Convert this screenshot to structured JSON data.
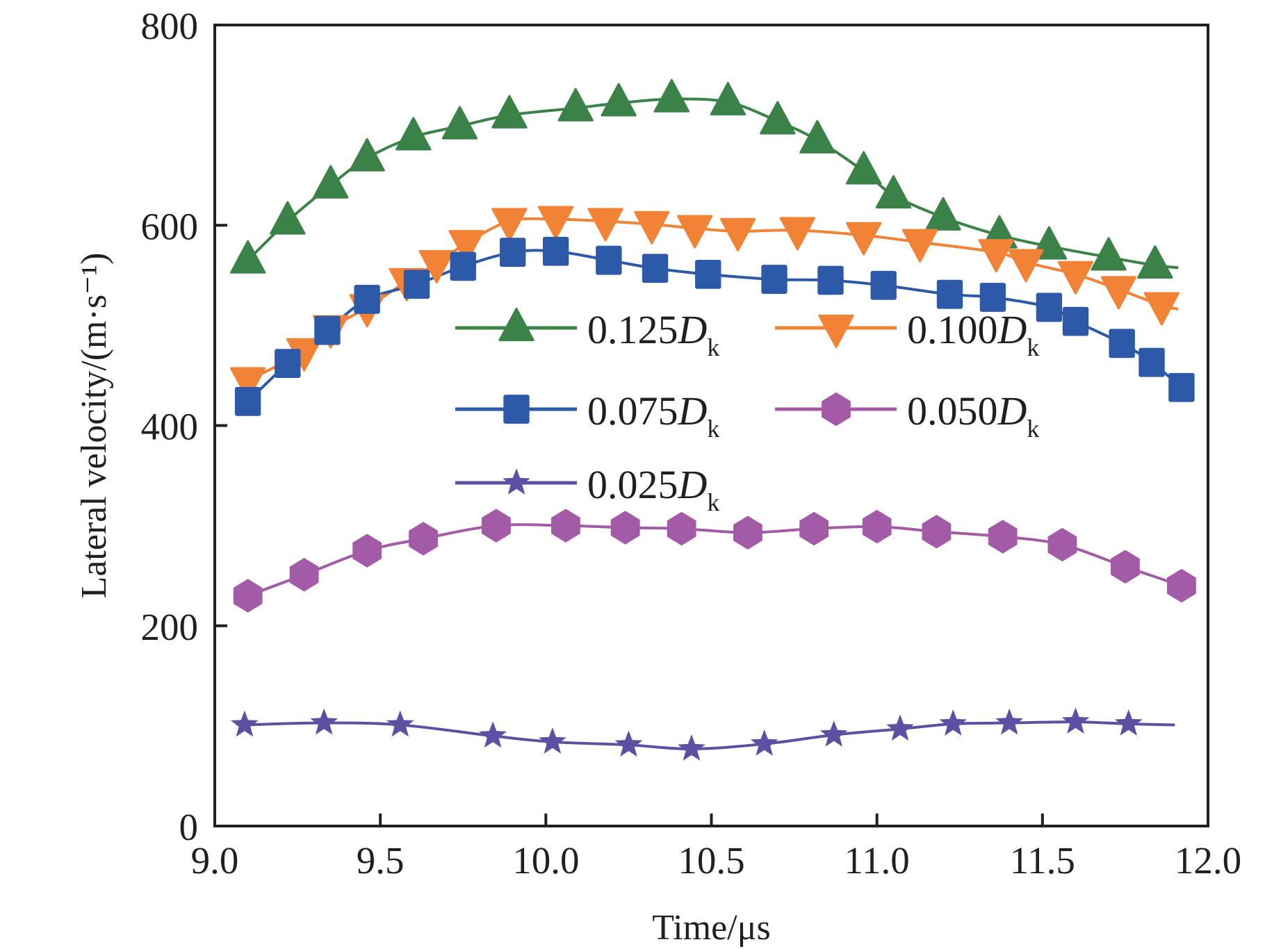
{
  "chart_data": {
    "type": "line",
    "title": "",
    "xlabel": "Time/μs",
    "ylabel": "Lateral velocity/(m·s⁻¹)",
    "xlim": [
      9.0,
      12.0
    ],
    "ylim": [
      0,
      800
    ],
    "x_ticks": [
      "9.0",
      "9.5",
      "10.0",
      "10.5",
      "11.0",
      "11.5",
      "12.0"
    ],
    "y_ticks": [
      "0",
      "200",
      "400",
      "600",
      "800"
    ],
    "grid": false,
    "legend_position": "center",
    "series": [
      {
        "name": "0.125",
        "legend_main": "0.125",
        "legend_italic": "D",
        "legend_sub": "k",
        "color": "#3b8249",
        "marker": "triangle-up",
        "x": [
          9.1,
          9.22,
          9.35,
          9.46,
          9.6,
          9.74,
          9.89,
          10.09,
          10.22,
          10.38,
          10.55,
          10.7,
          10.82,
          10.96,
          11.05,
          11.2,
          11.37,
          11.52,
          11.7,
          11.84
        ],
        "y": [
          565,
          604,
          640,
          667,
          688,
          699,
          710,
          717,
          722,
          726,
          723,
          704,
          685,
          654,
          630,
          608,
          590,
          579,
          568,
          560
        ]
      },
      {
        "name": "0.100",
        "legend_main": "0.100",
        "legend_italic": "D",
        "legend_sub": "k",
        "color": "#f28235",
        "marker": "triangle-down",
        "x": [
          9.1,
          9.27,
          9.35,
          9.46,
          9.58,
          9.67,
          9.76,
          9.89,
          10.03,
          10.18,
          10.32,
          10.45,
          10.58,
          10.76,
          10.96,
          11.13,
          11.36,
          11.45,
          11.6,
          11.73,
          11.86
        ],
        "y": [
          445,
          474,
          497,
          518,
          544,
          562,
          582,
          604,
          606,
          604,
          601,
          597,
          594,
          595,
          590,
          583,
          573,
          563,
          551,
          536,
          520
        ]
      },
      {
        "name": "0.075",
        "legend_main": "0.075",
        "legend_italic": "D",
        "legend_sub": "k",
        "color": "#2c5aa8",
        "marker": "square",
        "x": [
          9.1,
          9.22,
          9.34,
          9.46,
          9.61,
          9.75,
          9.9,
          10.03,
          10.19,
          10.33,
          10.49,
          10.69,
          10.86,
          11.02,
          11.22,
          11.35,
          11.52,
          11.6,
          11.74,
          11.83,
          11.92
        ],
        "y": [
          424,
          462,
          495,
          526,
          541,
          559,
          573,
          574,
          565,
          557,
          551,
          546,
          545,
          540,
          531,
          528,
          518,
          504,
          482,
          463,
          438
        ]
      },
      {
        "name": "0.050",
        "legend_main": "0.050",
        "legend_italic": "D",
        "legend_sub": "k",
        "color": "#a45ba7",
        "marker": "hexagon",
        "x": [
          9.1,
          9.27,
          9.46,
          9.63,
          9.85,
          10.06,
          10.24,
          10.41,
          10.61,
          10.81,
          11.0,
          11.18,
          11.38,
          11.56,
          11.75,
          11.92
        ],
        "y": [
          230,
          251,
          275,
          287,
          300,
          300,
          298,
          297,
          293,
          297,
          299,
          294,
          289,
          281,
          259,
          240
        ]
      },
      {
        "name": "0.025",
        "legend_main": "0.025",
        "legend_italic": "D",
        "legend_sub": "k",
        "color": "#5e4fa2",
        "marker": "star",
        "x": [
          9.09,
          9.33,
          9.56,
          9.84,
          10.02,
          10.25,
          10.44,
          10.66,
          10.87,
          11.07,
          11.23,
          11.4,
          11.6,
          11.76
        ],
        "y": [
          101,
          103,
          101,
          90,
          84,
          81,
          77,
          82,
          91,
          97,
          102,
          103,
          104,
          102
        ]
      }
    ],
    "curve_end_x": [
      11.91,
      11.91,
      11.91,
      11.92,
      11.9
    ]
  }
}
